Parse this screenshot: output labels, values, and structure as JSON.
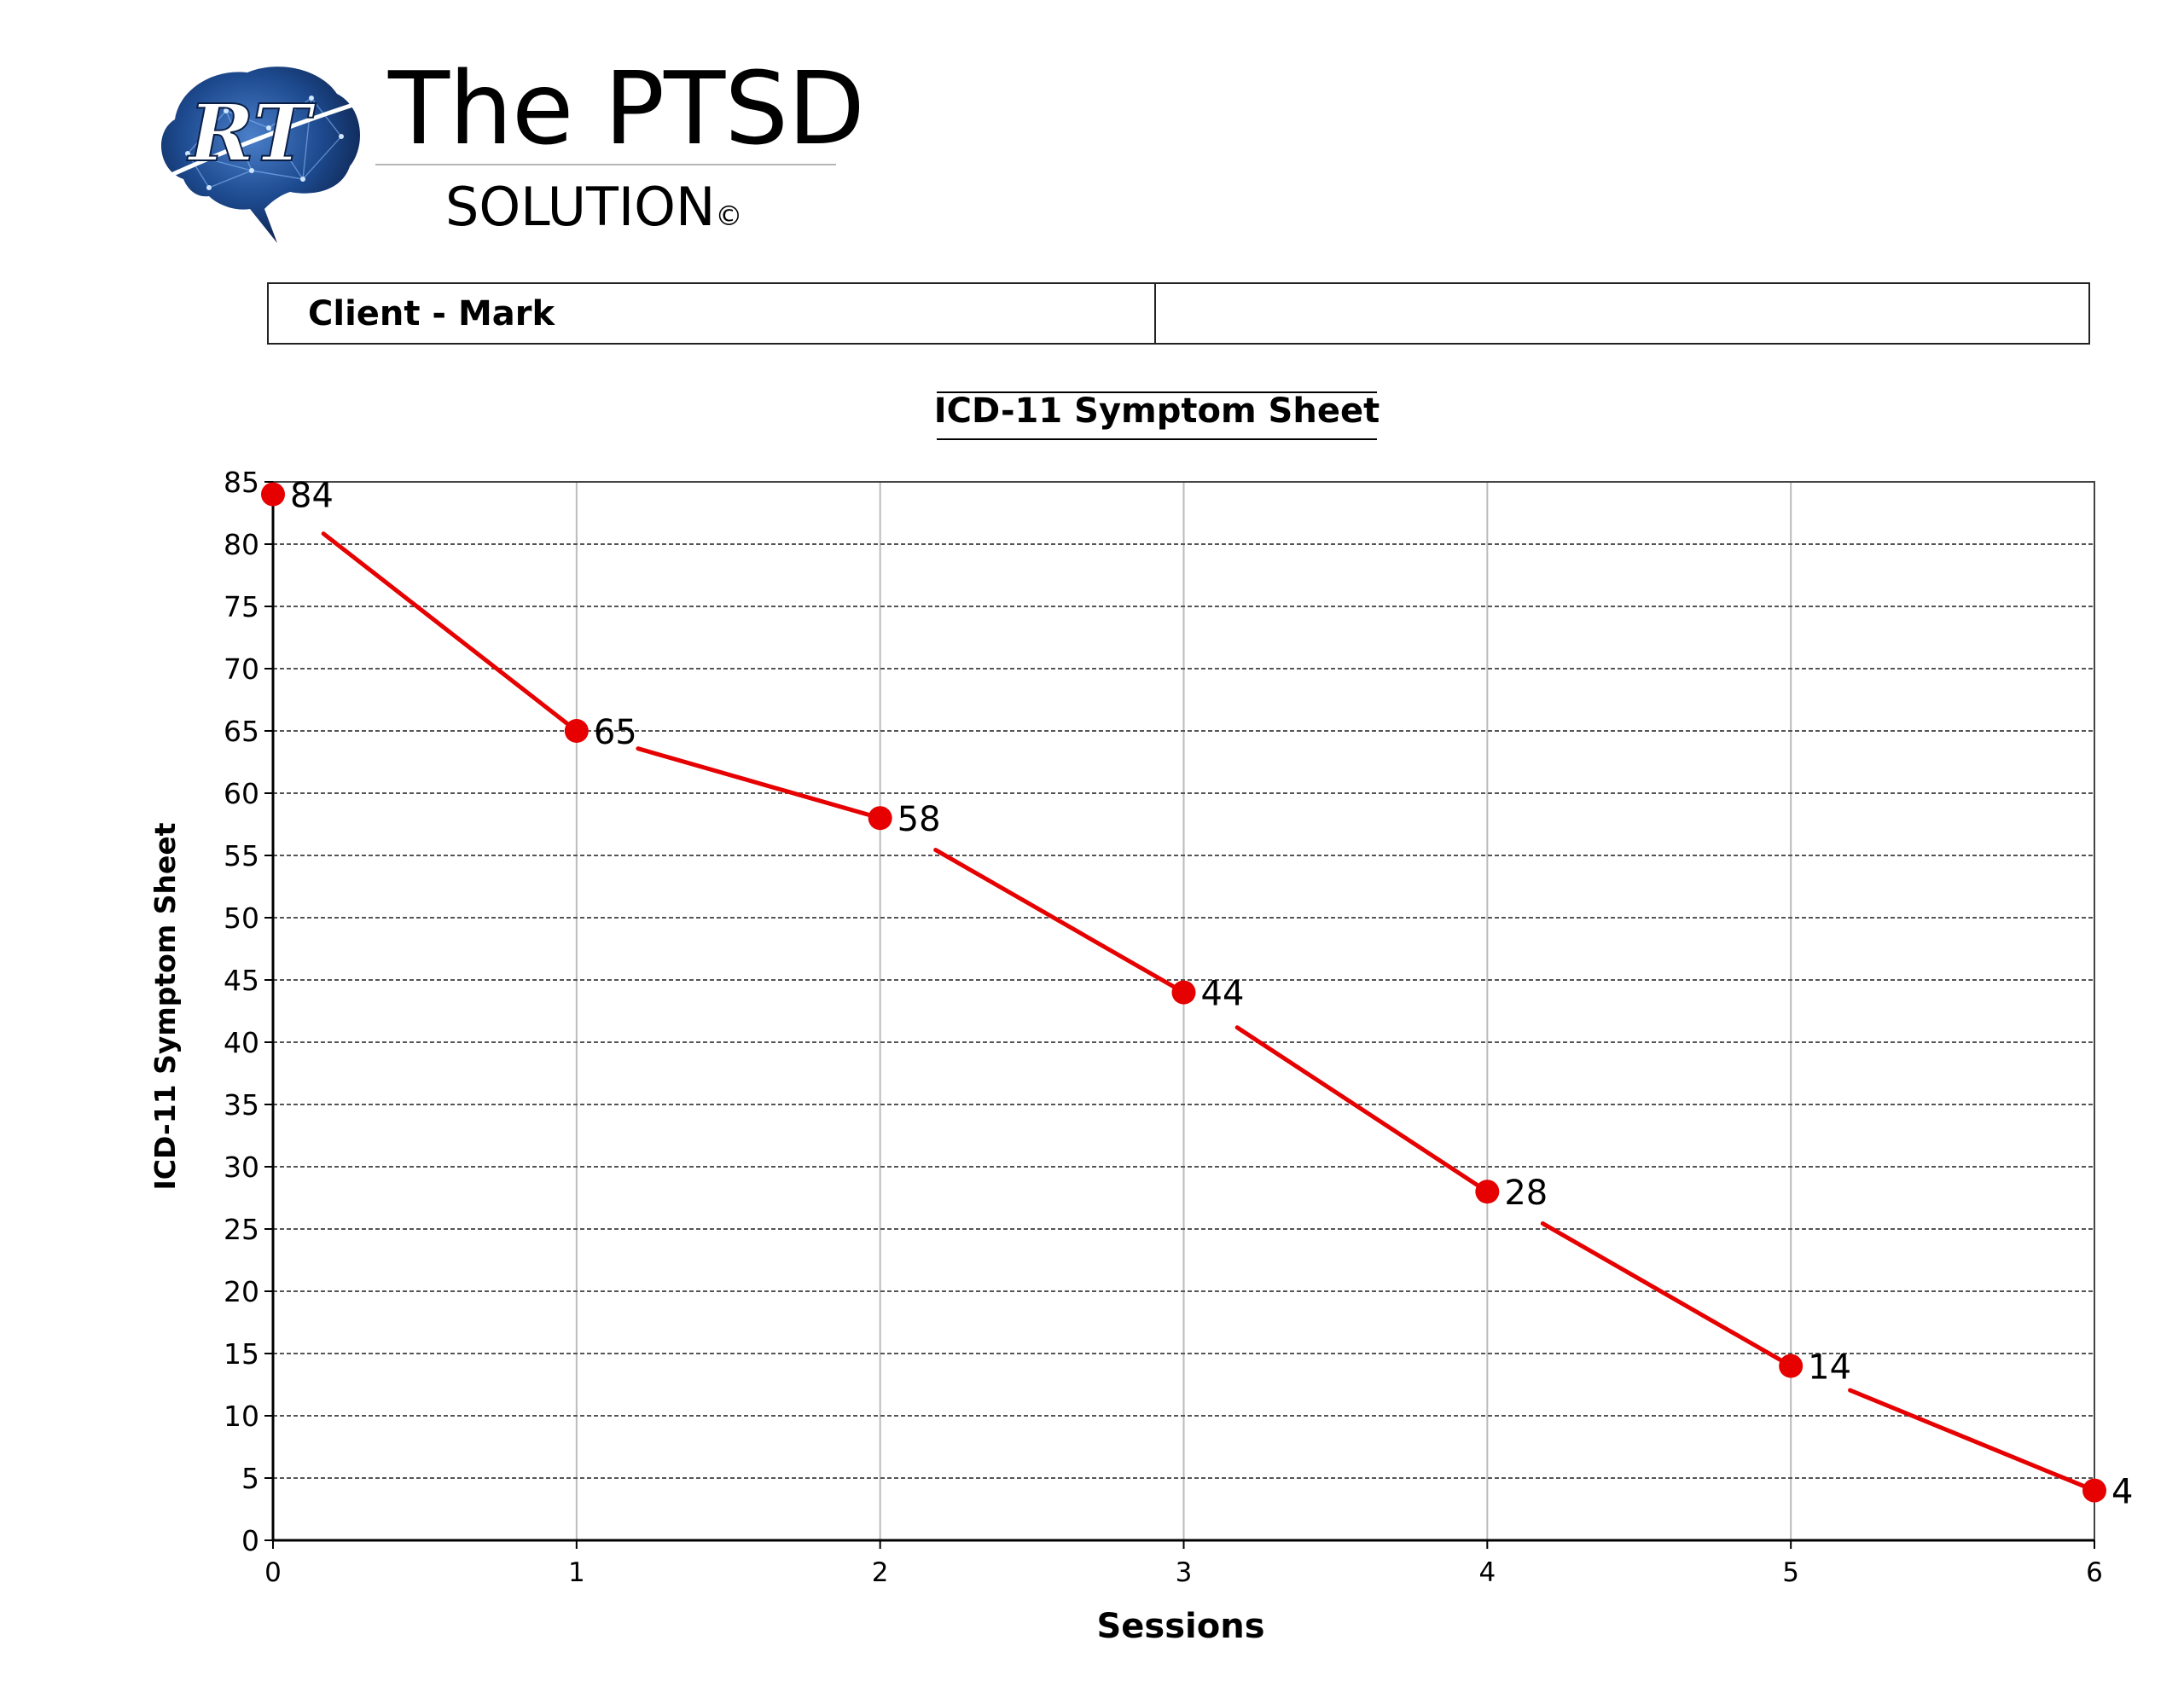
{
  "brand": {
    "logo_initials": "RT",
    "title": "The PTSD",
    "subtitle": "SOLUTION",
    "copyright_mark": "©"
  },
  "client": {
    "label": "Client - Mark",
    "notes": ""
  },
  "colors": {
    "series": "#e60000",
    "grid": "#555555",
    "vgrid": "#bbbbbb",
    "logo_blue": "#1a3f7a"
  },
  "chart_data": {
    "type": "line",
    "title": "ICD-11 Symptom Sheet",
    "xlabel": "Sessions",
    "ylabel": "ICD-11 Symptom Sheet",
    "x": [
      0,
      1,
      2,
      3,
      4,
      5,
      6
    ],
    "xticks": [
      0,
      1,
      2,
      3,
      4,
      5,
      6
    ],
    "yticks": [
      0,
      5,
      10,
      15,
      20,
      25,
      30,
      35,
      40,
      45,
      50,
      55,
      60,
      65,
      70,
      75,
      80,
      85
    ],
    "xlim": [
      0,
      6
    ],
    "ylim": [
      0,
      85
    ],
    "grid": true,
    "series": [
      {
        "name": "ICD-11 Symptom Sheet",
        "values": [
          84,
          65,
          58,
          44,
          28,
          14,
          4
        ],
        "labels": [
          "84",
          "65",
          "58",
          "44",
          "28",
          "14",
          "4"
        ]
      }
    ]
  }
}
